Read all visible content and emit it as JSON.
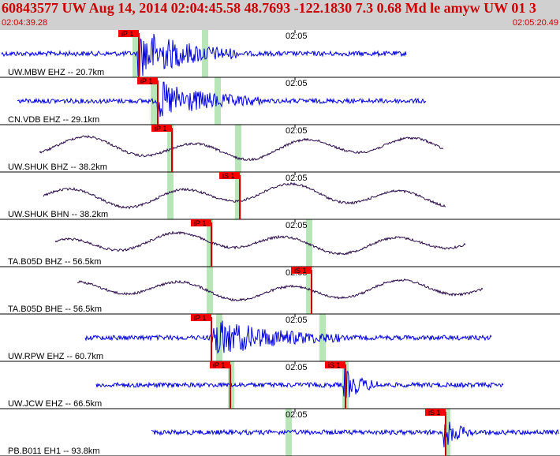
{
  "header": {
    "title": "60843577 UW Aug 14, 2014 02:04:45.58   48.7693 -122.1830  7.3 0.68 Md le amyw UW 01   3",
    "time_start": "02:04:39.28",
    "time_end": "02:05:20.49"
  },
  "colors": {
    "header_bg": "#d0d0d0",
    "header_text": "#cc0000",
    "wave_vertical": "#0000dd",
    "wave_broadband": "#2a0a4a",
    "pick_flag": "#ff0000",
    "pick_line": "#cc0000",
    "window_band": "#b8e6b8"
  },
  "tick_label": "02:05",
  "traces": [
    {
      "label": "UW.MBW EHZ -- 20.7km",
      "pick": "iP 1",
      "pick2": "",
      "kind": "vertical"
    },
    {
      "label": "CN.VDB EHZ -- 29.1km",
      "pick": "iP 1",
      "pick2": "",
      "kind": "vertical"
    },
    {
      "label": "UW.SHUK BHZ -- 38.2km",
      "pick": "iP 1",
      "pick2": "",
      "kind": "broadband"
    },
    {
      "label": "UW.SHUK BHN -- 38.2km",
      "pick": "iS 1",
      "pick2": "",
      "kind": "broadband"
    },
    {
      "label": "TA.B05D BHZ -- 56.5km",
      "pick": "iP 1",
      "pick2": "",
      "kind": "broadband"
    },
    {
      "label": "TA.B05D BHE -- 56.5km",
      "pick": "iS 1",
      "pick2": "",
      "kind": "broadband"
    },
    {
      "label": "UW.RPW EHZ -- 60.7km",
      "pick": "iP 1",
      "pick2": "",
      "kind": "vertical"
    },
    {
      "label": "UW.JCW EHZ -- 66.5km",
      "pick": "iP 1",
      "pick2": "iS 1",
      "kind": "vertical"
    },
    {
      "label": "PB.B011 EH1 -- 93.8km",
      "pick": "iS 1",
      "pick2": "",
      "kind": "vertical"
    }
  ]
}
